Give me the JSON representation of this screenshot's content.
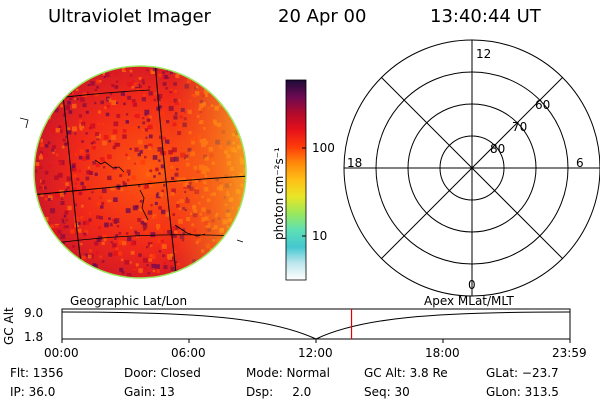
{
  "header": {
    "instrument": "Ultraviolet Imager",
    "date": "20 Apr 00",
    "time": "13:40:44 UT"
  },
  "colorbar": {
    "unit_label": "photon cm⁻²s⁻¹",
    "ticks": [
      "100",
      "10"
    ],
    "colors": [
      "#ffffff",
      "#bfe6ee",
      "#43c7cf",
      "#5ee0b4",
      "#9be85c",
      "#e9e626",
      "#ffc017",
      "#ff8a0a",
      "#ff3b0a",
      "#e5111a",
      "#b10a2b",
      "#6b0a52",
      "#1b0b38"
    ]
  },
  "polar_plot": {
    "mlt_labels": {
      "top": "12",
      "bottom": "0",
      "left": "18",
      "right": "6"
    },
    "lat_labels": [
      "60",
      "70",
      "80"
    ]
  },
  "altitude_plot": {
    "left_title": "Geographic Lat/Lon",
    "right_title": "Apex MLat/MLT",
    "ylabel": "GC Alt",
    "yticks": [
      "9.0",
      "1.8"
    ],
    "xticks": [
      "00:00",
      "06:00",
      "12:00",
      "18:00",
      "23:59"
    ],
    "marker_time_hours": 13.679,
    "marker_color": "#e00000"
  },
  "status": {
    "row1": [
      "Flt: 1356",
      "Door: Closed",
      "Mode: Normal",
      "GC Alt: 3.8 Re",
      "GLat: −23.7"
    ],
    "row2": [
      "IP: 36.0",
      "Gain: 13",
      "Dsp:     2.0",
      "Seq: 30",
      "GLon: 313.5"
    ]
  }
}
